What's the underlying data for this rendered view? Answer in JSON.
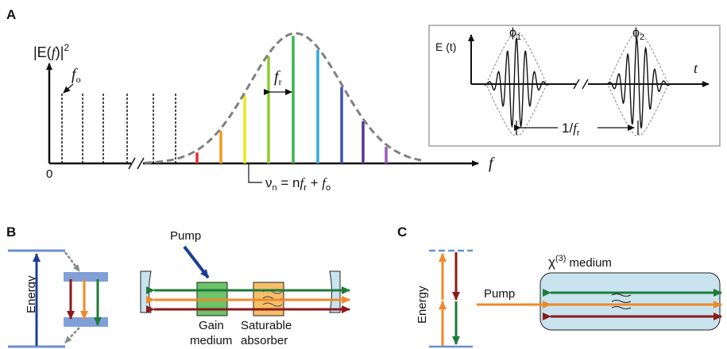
{
  "panels": {
    "a": "A",
    "b": "B",
    "c": "C"
  },
  "panel_a": {
    "y_axis_label": "|E(",
    "y_axis_f": "f",
    "y_axis_close": ")|",
    "y_axis_exp": "2",
    "fo_label": "f",
    "fo_sub": "o",
    "fr_label": "f",
    "fr_sub": "r",
    "origin": "0",
    "x_axis_label": "f",
    "eq_nu": "ν",
    "eq_nu_sub": "n",
    "eq_eq": " = n",
    "eq_f1": "f",
    "eq_r": "r",
    "eq_plus": " + ",
    "eq_f2": "f",
    "eq_o": "o",
    "inset": {
      "y_label": "E (t)",
      "x_label": "t",
      "phi1": "ϕ",
      "phi1_sub": "1",
      "phi2": "ϕ",
      "phi2_sub": "2",
      "period_a": "1/",
      "period_f": "f",
      "period_sub": "r"
    },
    "dashed_lines": [
      78,
      104,
      130,
      160,
      193,
      221
    ],
    "comb_lines": [
      {
        "x": 248,
        "color": "#e82c2c"
      },
      {
        "x": 278,
        "color": "#f39a20"
      },
      {
        "x": 308,
        "color": "#e8e81a"
      },
      {
        "x": 338,
        "color": "#8fcc30"
      },
      {
        "x": 369,
        "color": "#3cb44a"
      },
      {
        "x": 400,
        "color": "#32a8df"
      },
      {
        "x": 430,
        "color": "#3c50b4"
      },
      {
        "x": 457,
        "color": "#5a3296"
      },
      {
        "x": 486,
        "color": "#9b5ab4"
      }
    ]
  },
  "panel_b": {
    "energy": "Energy",
    "pump": "Pump",
    "gain_1": "Gain",
    "gain_2": "medium",
    "sat_1": "Saturable",
    "sat_2": "absorber"
  },
  "panel_c": {
    "energy": "Energy",
    "pump": "Pump",
    "chi": "χ",
    "chi_exp": "(3)",
    "medium": " medium"
  },
  "colors": {
    "green": "#1f7a3a",
    "orange": "#ef8a2a",
    "darkred": "#8b1a1a",
    "blue_dark": "#1c3f94",
    "light_blue": "#c9e4ef",
    "level_blue": "#6a8fd0"
  }
}
